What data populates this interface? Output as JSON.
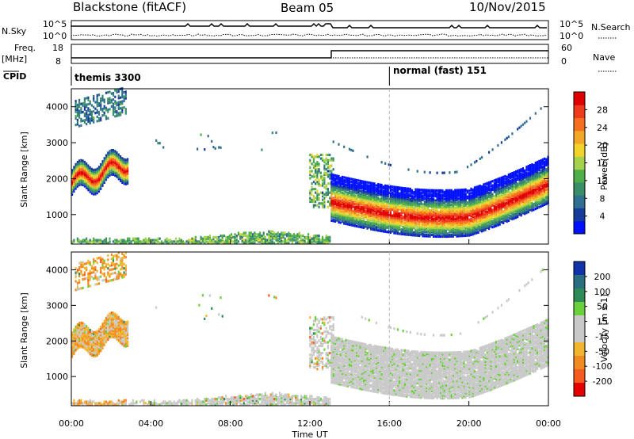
{
  "header": {
    "station": "Blackstone (fitACF)",
    "beam": "Beam 05",
    "date": "10/Nov/2015"
  },
  "status_panels": {
    "nsky_label": "N.Sky",
    "nsky_ticks": [
      "10^5",
      "10^0"
    ],
    "nsearch_label": "N.Search",
    "nsearch_ticks": [
      "10^5",
      "10^0"
    ],
    "freq_label": "Freq.",
    "freq_unit": "[MHz]",
    "freq_ticks": [
      "18",
      "8"
    ],
    "nave_label": "Nave",
    "nave_ticks": [
      "60",
      "0"
    ],
    "cpid_label": "CPID",
    "cpid_segments": [
      {
        "name": "themis 3300",
        "start_h": 0
      },
      {
        "name": "normal (fast) 151",
        "start_h": 16
      }
    ]
  },
  "chart_data": [
    {
      "type": "heatmap",
      "parameter": "Power",
      "ylabel": "Slant Range [km]",
      "yticks": [
        1000,
        2000,
        3000,
        4000
      ],
      "ylim": [
        180,
        4500
      ],
      "xlim": [
        0,
        24
      ],
      "colorbar": {
        "label": "Power [dB]",
        "ticks": [
          "4",
          "8",
          "12",
          "16",
          "20",
          "24",
          "28"
        ],
        "colors": [
          "#0010ff",
          "#173b9a",
          "#2f6f8f",
          "#3a8f68",
          "#4fb04a",
          "#a6d14b",
          "#f1d32a",
          "#f2a726",
          "#f56f1e",
          "#ee3b1d",
          "#e00000"
        ]
      }
    },
    {
      "type": "heatmap",
      "parameter": "Velocity",
      "ylabel": "Slant Range [km]",
      "yticks": [
        1000,
        2000,
        3000,
        4000
      ],
      "ylim": [
        180,
        4500
      ],
      "xlim": [
        0,
        24
      ],
      "colorbar": {
        "label": "Velocity [m s-1]",
        "ticks": [
          "200",
          "100",
          "50",
          "15",
          "-15",
          "-50",
          "-100",
          "-200"
        ],
        "colors": [
          "#1133aa",
          "#2a6f80",
          "#2e8a56",
          "#6bd13a",
          "#c9c9c9",
          "#c9c9c9",
          "#f1b52e",
          "#f28a22",
          "#f55a1e",
          "#e40000"
        ]
      }
    }
  ],
  "xaxis": {
    "label": "Time UT",
    "ticks": [
      "00:00",
      "04:00",
      "08:00",
      "12:00",
      "16:00",
      "20:00",
      "00:00"
    ]
  }
}
